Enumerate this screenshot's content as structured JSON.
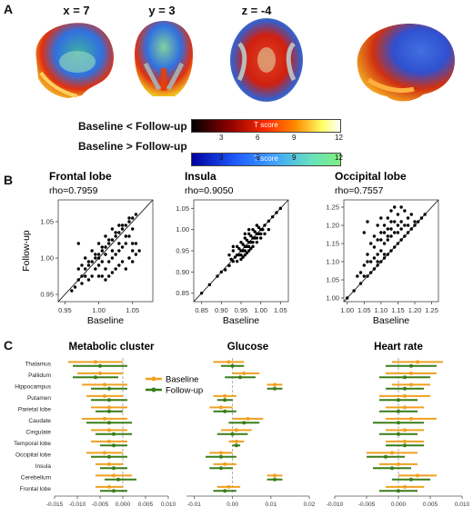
{
  "panels": {
    "a": "A",
    "b": "B",
    "c": "C"
  },
  "brain_slices": [
    {
      "label": "x = 7"
    },
    {
      "label": "y = 3"
    },
    {
      "label": "z = -4"
    }
  ],
  "colorbars": [
    {
      "label": "Baseline < Follow-up",
      "title": "T score",
      "ticks": [
        "3",
        "6",
        "9",
        "12"
      ],
      "colors": [
        "#000000",
        "#8b0000",
        "#ff2a00",
        "#ff8c00",
        "#ffff66",
        "#ffffff"
      ]
    },
    {
      "label": "Baseline > Follow-up",
      "title": "T score",
      "ticks": [
        "3",
        "6",
        "9",
        "12"
      ],
      "colors": [
        "#0000a0",
        "#1f5dff",
        "#40a0ff",
        "#66e0c0",
        "#80f080"
      ]
    }
  ],
  "chart_data": [
    {
      "type": "scatter",
      "title": "Frontal lobe",
      "annotation": "rho=0.7959",
      "xlabel": "Baseline",
      "ylabel": "Follow-up",
      "xlim": [
        0.94,
        1.08
      ],
      "ylim": [
        0.94,
        1.08
      ],
      "xticks": [
        "0.95",
        "1.00",
        "1.05"
      ],
      "yticks": [
        "0.95",
        "1.00",
        "1.05"
      ],
      "identity_line": true,
      "points": [
        [
          0.96,
          0.955
        ],
        [
          0.965,
          0.96
        ],
        [
          0.97,
          0.97
        ],
        [
          0.975,
          0.975
        ],
        [
          0.98,
          0.985
        ],
        [
          0.985,
          0.99
        ],
        [
          0.99,
          0.995
        ],
        [
          0.995,
          1.0
        ],
        [
          1.0,
          1.005
        ],
        [
          1.005,
          1.01
        ],
        [
          1.01,
          1.015
        ],
        [
          1.015,
          1.02
        ],
        [
          1.02,
          1.025
        ],
        [
          1.025,
          1.03
        ],
        [
          1.03,
          1.035
        ],
        [
          1.035,
          1.04
        ],
        [
          1.04,
          1.045
        ],
        [
          1.045,
          1.05
        ],
        [
          1.05,
          1.055
        ],
        [
          1.055,
          1.06
        ],
        [
          0.97,
          1.02
        ],
        [
          0.975,
          0.99
        ],
        [
          0.98,
          0.975
        ],
        [
          0.985,
          0.97
        ],
        [
          0.99,
          0.975
        ],
        [
          0.995,
          0.985
        ],
        [
          1.0,
          0.99
        ],
        [
          1.005,
          0.995
        ],
        [
          1.01,
          0.985
        ],
        [
          1.015,
          0.995
        ],
        [
          1.02,
          1.0
        ],
        [
          1.025,
          1.005
        ],
        [
          1.03,
          1.01
        ],
        [
          1.035,
          1.015
        ],
        [
          1.04,
          1.02
        ],
        [
          1.045,
          1.03
        ],
        [
          1.05,
          1.04
        ],
        [
          1.0,
          0.975
        ],
        [
          1.01,
          0.97
        ],
        [
          1.02,
          0.98
        ],
        [
          1.03,
          0.99
        ],
        [
          1.04,
          0.985
        ],
        [
          1.05,
          0.995
        ],
        [
          1.055,
          1.005
        ],
        [
          0.99,
          1.01
        ],
        [
          1.0,
          1.02
        ],
        [
          1.01,
          1.03
        ],
        [
          1.02,
          1.04
        ],
        [
          1.03,
          1.045
        ],
        [
          0.985,
          0.995
        ],
        [
          0.995,
          1.005
        ],
        [
          1.005,
          1.015
        ],
        [
          1.015,
          1.025
        ],
        [
          1.025,
          1.035
        ],
        [
          1.035,
          1.045
        ],
        [
          1.045,
          1.055
        ],
        [
          0.98,
          1.0
        ],
        [
          1.0,
          1.0
        ],
        [
          1.01,
          1.005
        ],
        [
          1.02,
          1.01
        ],
        [
          1.03,
          1.02
        ],
        [
          1.04,
          1.03
        ],
        [
          1.05,
          1.02
        ],
        [
          1.06,
          1.01
        ],
        [
          0.975,
          0.965
        ],
        [
          0.97,
          0.985
        ],
        [
          1.005,
          0.975
        ],
        [
          1.015,
          0.975
        ],
        [
          1.025,
          0.985
        ],
        [
          1.035,
          0.995
        ],
        [
          1.045,
          1.0
        ],
        [
          1.05,
          1.01
        ],
        [
          1.055,
          1.02
        ]
      ]
    },
    {
      "type": "scatter",
      "title": "Insula",
      "annotation": "rho=0.9050",
      "xlabel": "Baseline",
      "ylabel": "",
      "xlim": [
        0.83,
        1.07
      ],
      "ylim": [
        0.83,
        1.07
      ],
      "xticks": [
        "0.85",
        "0.90",
        "0.95",
        "1.00",
        "1.05"
      ],
      "yticks": [
        "0.85",
        "0.90",
        "0.95",
        "1.00",
        "1.05"
      ],
      "identity_line": true,
      "points": [
        [
          0.85,
          0.85
        ],
        [
          0.87,
          0.87
        ],
        [
          0.89,
          0.89
        ],
        [
          0.9,
          0.9
        ],
        [
          0.91,
          0.905
        ],
        [
          0.92,
          0.915
        ],
        [
          0.925,
          0.93
        ],
        [
          0.93,
          0.925
        ],
        [
          0.935,
          0.935
        ],
        [
          0.94,
          0.94
        ],
        [
          0.945,
          0.94
        ],
        [
          0.95,
          0.95
        ],
        [
          0.955,
          0.95
        ],
        [
          0.96,
          0.96
        ],
        [
          0.965,
          0.96
        ],
        [
          0.97,
          0.97
        ],
        [
          0.975,
          0.97
        ],
        [
          0.98,
          0.98
        ],
        [
          0.985,
          0.98
        ],
        [
          0.99,
          0.99
        ],
        [
          0.995,
          0.99
        ],
        [
          1.0,
          1.0
        ],
        [
          1.005,
          1.0
        ],
        [
          1.01,
          1.01
        ],
        [
          1.02,
          1.02
        ],
        [
          1.03,
          1.03
        ],
        [
          1.04,
          1.04
        ],
        [
          1.05,
          1.05
        ],
        [
          0.93,
          0.95
        ],
        [
          0.94,
          0.96
        ],
        [
          0.95,
          0.97
        ],
        [
          0.96,
          0.98
        ],
        [
          0.97,
          0.99
        ],
        [
          0.98,
          1.0
        ],
        [
          0.99,
          1.01
        ],
        [
          0.95,
          0.93
        ],
        [
          0.96,
          0.94
        ],
        [
          0.97,
          0.95
        ],
        [
          0.98,
          0.96
        ],
        [
          0.99,
          0.97
        ],
        [
          1.0,
          0.98
        ],
        [
          0.945,
          0.955
        ],
        [
          0.955,
          0.965
        ],
        [
          0.965,
          0.975
        ],
        [
          0.975,
          0.985
        ],
        [
          0.985,
          0.995
        ],
        [
          0.995,
          1.005
        ],
        [
          0.94,
          0.925
        ],
        [
          0.95,
          0.94
        ],
        [
          0.96,
          0.95
        ],
        [
          0.97,
          0.96
        ],
        [
          0.98,
          0.97
        ],
        [
          0.99,
          0.98
        ],
        [
          1.0,
          0.99
        ],
        [
          0.92,
          0.94
        ],
        [
          0.97,
          1.0
        ],
        [
          0.93,
          0.96
        ],
        [
          0.975,
          0.955
        ],
        [
          0.96,
          0.99
        ],
        [
          1.01,
          0.99
        ],
        [
          1.02,
          1.0
        ],
        [
          0.955,
          0.935
        ],
        [
          0.965,
          0.945
        ]
      ]
    },
    {
      "type": "scatter",
      "title": "Occipital lobe",
      "annotation": "rho=0.7557",
      "xlabel": "Baseline",
      "ylabel": "",
      "xlim": [
        0.99,
        1.27
      ],
      "ylim": [
        0.99,
        1.27
      ],
      "xticks": [
        "1.00",
        "1.05",
        "1.10",
        "1.15",
        "1.20",
        "1.25"
      ],
      "yticks": [
        "1.00",
        "1.05",
        "1.10",
        "1.15",
        "1.20",
        "1.25"
      ],
      "identity_line": true,
      "points": [
        [
          1.0,
          1.0
        ],
        [
          1.02,
          1.02
        ],
        [
          1.04,
          1.04
        ],
        [
          1.06,
          1.06
        ],
        [
          1.07,
          1.07
        ],
        [
          1.08,
          1.08
        ],
        [
          1.09,
          1.09
        ],
        [
          1.1,
          1.1
        ],
        [
          1.11,
          1.11
        ],
        [
          1.12,
          1.12
        ],
        [
          1.13,
          1.13
        ],
        [
          1.14,
          1.14
        ],
        [
          1.15,
          1.15
        ],
        [
          1.16,
          1.16
        ],
        [
          1.17,
          1.17
        ],
        [
          1.18,
          1.18
        ],
        [
          1.19,
          1.19
        ],
        [
          1.2,
          1.2
        ],
        [
          1.21,
          1.21
        ],
        [
          1.22,
          1.22
        ],
        [
          1.23,
          1.23
        ],
        [
          1.05,
          1.09
        ],
        [
          1.06,
          1.12
        ],
        [
          1.07,
          1.15
        ],
        [
          1.08,
          1.17
        ],
        [
          1.09,
          1.2
        ],
        [
          1.1,
          1.22
        ],
        [
          1.05,
          1.18
        ],
        [
          1.06,
          1.21
        ],
        [
          1.08,
          1.14
        ],
        [
          1.09,
          1.16
        ],
        [
          1.1,
          1.18
        ],
        [
          1.11,
          1.2
        ],
        [
          1.12,
          1.22
        ],
        [
          1.13,
          1.24
        ],
        [
          1.14,
          1.25
        ],
        [
          1.12,
          1.17
        ],
        [
          1.13,
          1.19
        ],
        [
          1.14,
          1.21
        ],
        [
          1.15,
          1.23
        ],
        [
          1.16,
          1.25
        ],
        [
          1.17,
          1.24
        ],
        [
          1.11,
          1.15
        ],
        [
          1.12,
          1.16
        ],
        [
          1.13,
          1.17
        ],
        [
          1.14,
          1.18
        ],
        [
          1.15,
          1.2
        ],
        [
          1.16,
          1.21
        ],
        [
          1.17,
          1.2
        ],
        [
          1.18,
          1.22
        ],
        [
          1.19,
          1.23
        ],
        [
          1.07,
          1.1
        ],
        [
          1.08,
          1.11
        ],
        [
          1.09,
          1.12
        ],
        [
          1.1,
          1.13
        ],
        [
          1.06,
          1.1
        ],
        [
          1.04,
          1.07
        ],
        [
          1.03,
          1.06
        ],
        [
          1.1,
          1.16
        ],
        [
          1.11,
          1.18
        ],
        [
          1.12,
          1.19
        ],
        [
          1.13,
          1.21
        ],
        [
          1.15,
          1.18
        ],
        [
          1.16,
          1.19
        ],
        [
          1.18,
          1.2
        ],
        [
          1.05,
          1.06
        ],
        [
          1.09,
          1.1
        ],
        [
          1.11,
          1.12
        ],
        [
          1.2,
          1.21
        ]
      ]
    },
    {
      "type": "forest",
      "title": "Metabolic cluster",
      "xlim": [
        -0.015,
        0.01
      ],
      "xticks": [
        "-0.015",
        "-0.010",
        "-0.005",
        "0.000",
        "0.005",
        "0.010"
      ],
      "regions": [
        "Thalamus",
        "Pallidum",
        "Hippocampus",
        "Putamen",
        "Parietal lobe",
        "Caudate",
        "Cingulate",
        "Temporal lobe",
        "Occipital lobe",
        "Insula",
        "Cerebellum",
        "Frontal lobe"
      ],
      "legend": [
        "Baseline",
        "Follow-up"
      ],
      "series": [
        {
          "name": "Baseline",
          "estimates": [
            -0.006,
            -0.005,
            -0.004,
            -0.004,
            -0.003,
            -0.004,
            -0.003,
            -0.003,
            -0.004,
            -0.003,
            -0.002,
            -0.003
          ],
          "lower": [
            -0.012,
            -0.01,
            -0.009,
            -0.008,
            -0.007,
            -0.009,
            -0.007,
            -0.007,
            -0.008,
            -0.006,
            -0.006,
            -0.006
          ],
          "upper": [
            0.0,
            0.0,
            0.001,
            0.0,
            0.001,
            0.001,
            0.001,
            0.001,
            0.0,
            0.0,
            0.002,
            0.0
          ]
        },
        {
          "name": "Follow-up",
          "estimates": [
            -0.005,
            -0.006,
            -0.003,
            -0.003,
            -0.003,
            -0.003,
            -0.002,
            -0.002,
            -0.003,
            -0.002,
            -0.001,
            -0.002
          ],
          "lower": [
            -0.011,
            -0.011,
            -0.007,
            -0.007,
            -0.006,
            -0.008,
            -0.006,
            -0.005,
            -0.007,
            -0.005,
            -0.004,
            -0.005
          ],
          "upper": [
            0.001,
            -0.001,
            0.001,
            0.001,
            0.0,
            0.002,
            0.002,
            0.001,
            0.001,
            0.001,
            0.003,
            0.001
          ]
        }
      ]
    },
    {
      "type": "forest",
      "title": "Glucose",
      "xlim": [
        -0.012,
        0.02
      ],
      "xticks": [
        "-0.01",
        "0.00",
        "0.01",
        "0.02"
      ],
      "regions": [
        "Thalamus",
        "Pallidum",
        "Hippocampus",
        "Putamen",
        "Parietal lobe",
        "Caudate",
        "Cingulate",
        "Temporal lobe",
        "Occipital lobe",
        "Insula",
        "Cerebellum",
        "Frontal lobe"
      ],
      "series": [
        {
          "name": "Baseline",
          "estimates": [
            -0.001,
            0.003,
            0.011,
            -0.002,
            -0.003,
            0.004,
            0.001,
            0.001,
            -0.003,
            -0.002,
            0.011,
            -0.001
          ],
          "lower": [
            -0.005,
            0.0,
            0.009,
            -0.005,
            -0.006,
            0.0,
            -0.003,
            -0.001,
            -0.006,
            -0.005,
            0.009,
            -0.004
          ],
          "upper": [
            0.003,
            0.007,
            0.013,
            0.001,
            0.0,
            0.008,
            0.005,
            0.003,
            0.0,
            0.001,
            0.013,
            0.002
          ]
        },
        {
          "name": "Follow-up",
          "estimates": [
            0.0,
            0.002,
            0.011,
            -0.002,
            -0.002,
            0.003,
            0.0,
            0.001,
            -0.003,
            -0.003,
            0.011,
            -0.002
          ],
          "lower": [
            -0.003,
            -0.002,
            0.009,
            -0.004,
            -0.005,
            -0.001,
            -0.004,
            0.0,
            -0.007,
            -0.006,
            0.009,
            -0.005
          ],
          "upper": [
            0.003,
            0.006,
            0.013,
            0.0,
            0.001,
            0.007,
            0.004,
            0.002,
            0.001,
            0.0,
            0.013,
            0.001
          ]
        }
      ]
    },
    {
      "type": "forest",
      "title": "Heart rate",
      "xlim": [
        -0.01,
        0.01
      ],
      "xticks": [
        "-0.010",
        "-0.005",
        "0.000",
        "0.005",
        "0.010"
      ],
      "regions": [
        "Thalamus",
        "Pallidum",
        "Hippocampus",
        "Putamen",
        "Parietal lobe",
        "Caudate",
        "Cingulate",
        "Temporal lobe",
        "Occipital lobe",
        "Insula",
        "Cerebellum",
        "Frontal lobe"
      ],
      "series": [
        {
          "name": "Baseline",
          "estimates": [
            0.003,
            0.002,
            0.002,
            0.001,
            0.001,
            0.002,
            0.001,
            0.001,
            -0.001,
            0.0,
            0.003,
            0.001
          ],
          "lower": [
            -0.001,
            -0.002,
            -0.001,
            -0.003,
            -0.002,
            -0.002,
            -0.002,
            -0.002,
            -0.005,
            -0.003,
            0.0,
            -0.002
          ],
          "upper": [
            0.007,
            0.006,
            0.005,
            0.005,
            0.004,
            0.006,
            0.004,
            0.004,
            0.003,
            0.003,
            0.006,
            0.004
          ]
        },
        {
          "name": "Follow-up",
          "estimates": [
            0.002,
            0.001,
            0.001,
            0.0,
            0.0,
            0.0,
            0.0,
            0.001,
            -0.002,
            -0.001,
            0.002,
            0.0
          ],
          "lower": [
            -0.002,
            -0.003,
            -0.002,
            -0.003,
            -0.003,
            -0.004,
            -0.003,
            -0.002,
            -0.005,
            -0.004,
            -0.001,
            -0.003
          ],
          "upper": [
            0.006,
            0.005,
            0.004,
            0.003,
            0.003,
            0.004,
            0.003,
            0.004,
            0.001,
            0.002,
            0.005,
            0.003
          ]
        }
      ]
    }
  ],
  "colors": {
    "baseline": "#f0a020",
    "followup": "#3a7d1a"
  }
}
